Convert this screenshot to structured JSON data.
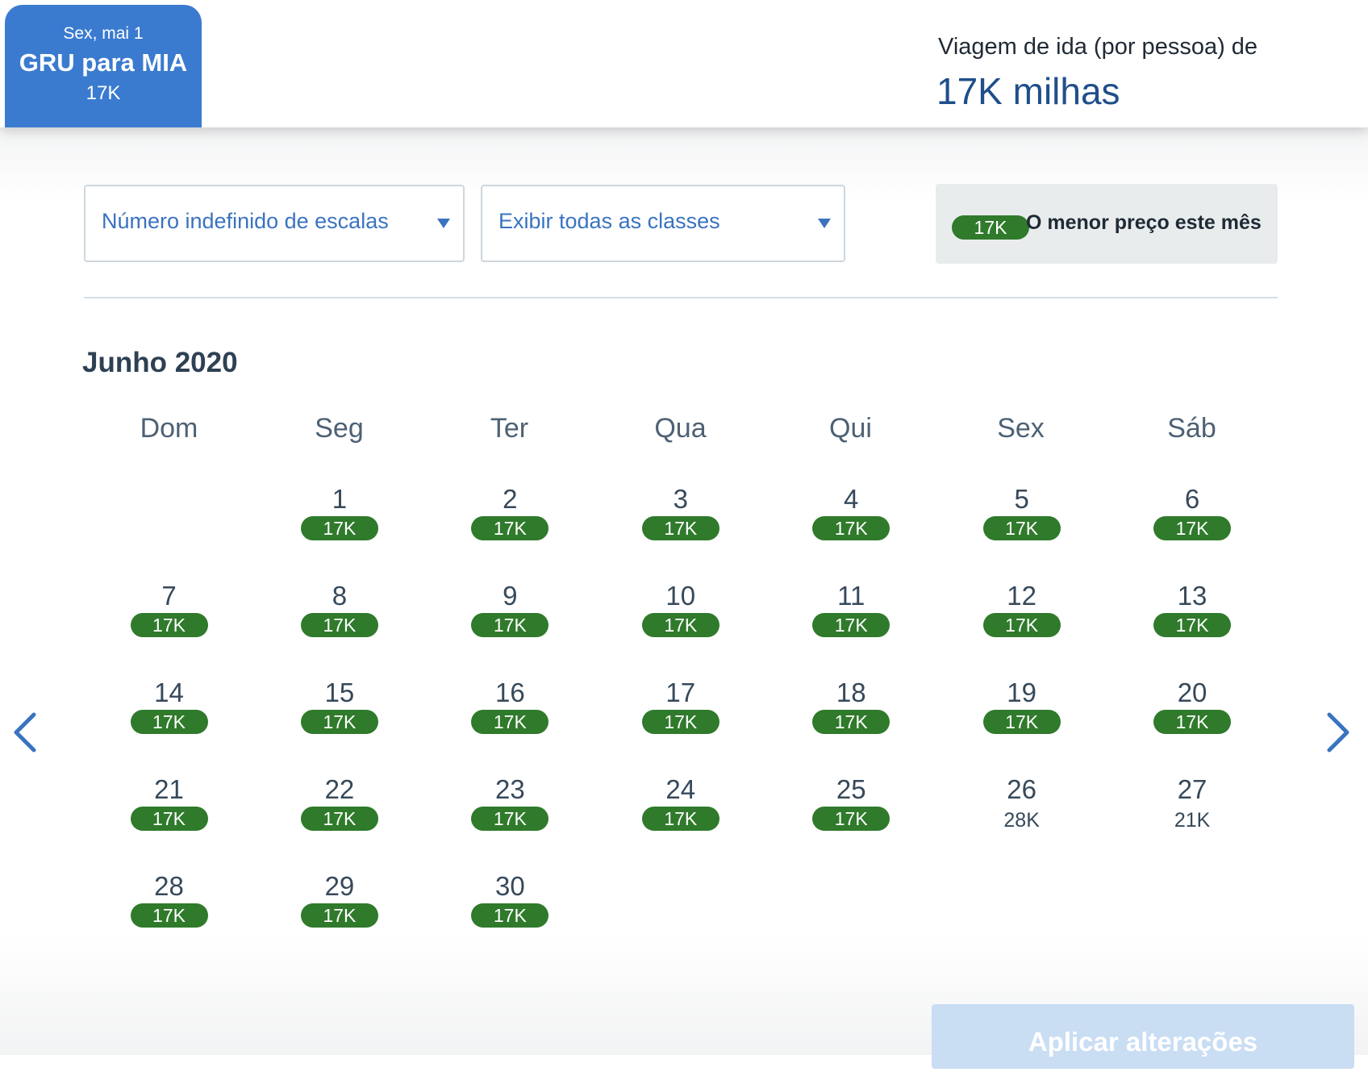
{
  "segment": {
    "date": "Sex, mai 1",
    "route": "GRU para MIA",
    "price": "17K"
  },
  "summary": {
    "label": "Viagem de ida (por pessoa) de",
    "price": "17K milhas"
  },
  "filters": {
    "stops": "Número indefinido de escalas",
    "classes": "Exibir todas as classes"
  },
  "legend": {
    "pill": "17K",
    "text": "O menor preço este mês"
  },
  "month_title": "Junho 2020",
  "weekdays": [
    "Dom",
    "Seg",
    "Ter",
    "Qua",
    "Qui",
    "Sex",
    "Sáb"
  ],
  "days": [
    {
      "day": "1",
      "price": "17K",
      "lowest": true
    },
    {
      "day": "2",
      "price": "17K",
      "lowest": true
    },
    {
      "day": "3",
      "price": "17K",
      "lowest": true
    },
    {
      "day": "4",
      "price": "17K",
      "lowest": true
    },
    {
      "day": "5",
      "price": "17K",
      "lowest": true
    },
    {
      "day": "6",
      "price": "17K",
      "lowest": true
    },
    {
      "day": "7",
      "price": "17K",
      "lowest": true
    },
    {
      "day": "8",
      "price": "17K",
      "lowest": true
    },
    {
      "day": "9",
      "price": "17K",
      "lowest": true
    },
    {
      "day": "10",
      "price": "17K",
      "lowest": true
    },
    {
      "day": "11",
      "price": "17K",
      "lowest": true
    },
    {
      "day": "12",
      "price": "17K",
      "lowest": true
    },
    {
      "day": "13",
      "price": "17K",
      "lowest": true
    },
    {
      "day": "14",
      "price": "17K",
      "lowest": true
    },
    {
      "day": "15",
      "price": "17K",
      "lowest": true
    },
    {
      "day": "16",
      "price": "17K",
      "lowest": true
    },
    {
      "day": "17",
      "price": "17K",
      "lowest": true
    },
    {
      "day": "18",
      "price": "17K",
      "lowest": true
    },
    {
      "day": "19",
      "price": "17K",
      "lowest": true
    },
    {
      "day": "20",
      "price": "17K",
      "lowest": true
    },
    {
      "day": "21",
      "price": "17K",
      "lowest": true
    },
    {
      "day": "22",
      "price": "17K",
      "lowest": true
    },
    {
      "day": "23",
      "price": "17K",
      "lowest": true
    },
    {
      "day": "24",
      "price": "17K",
      "lowest": true
    },
    {
      "day": "25",
      "price": "17K",
      "lowest": true
    },
    {
      "day": "26",
      "price": "28K",
      "lowest": false
    },
    {
      "day": "27",
      "price": "21K",
      "lowest": false
    },
    {
      "day": "28",
      "price": "17K",
      "lowest": true
    },
    {
      "day": "29",
      "price": "17K",
      "lowest": true
    },
    {
      "day": "30",
      "price": "17K",
      "lowest": true
    }
  ],
  "apply_label": "Aplicar alterações",
  "colors": {
    "accent": "#3a7bd0",
    "lowest_price": "#2f7a2b",
    "apply_disabled": "#c9ddf3"
  },
  "icons": {
    "prev": "chevron-left-icon",
    "next": "chevron-right-icon"
  }
}
